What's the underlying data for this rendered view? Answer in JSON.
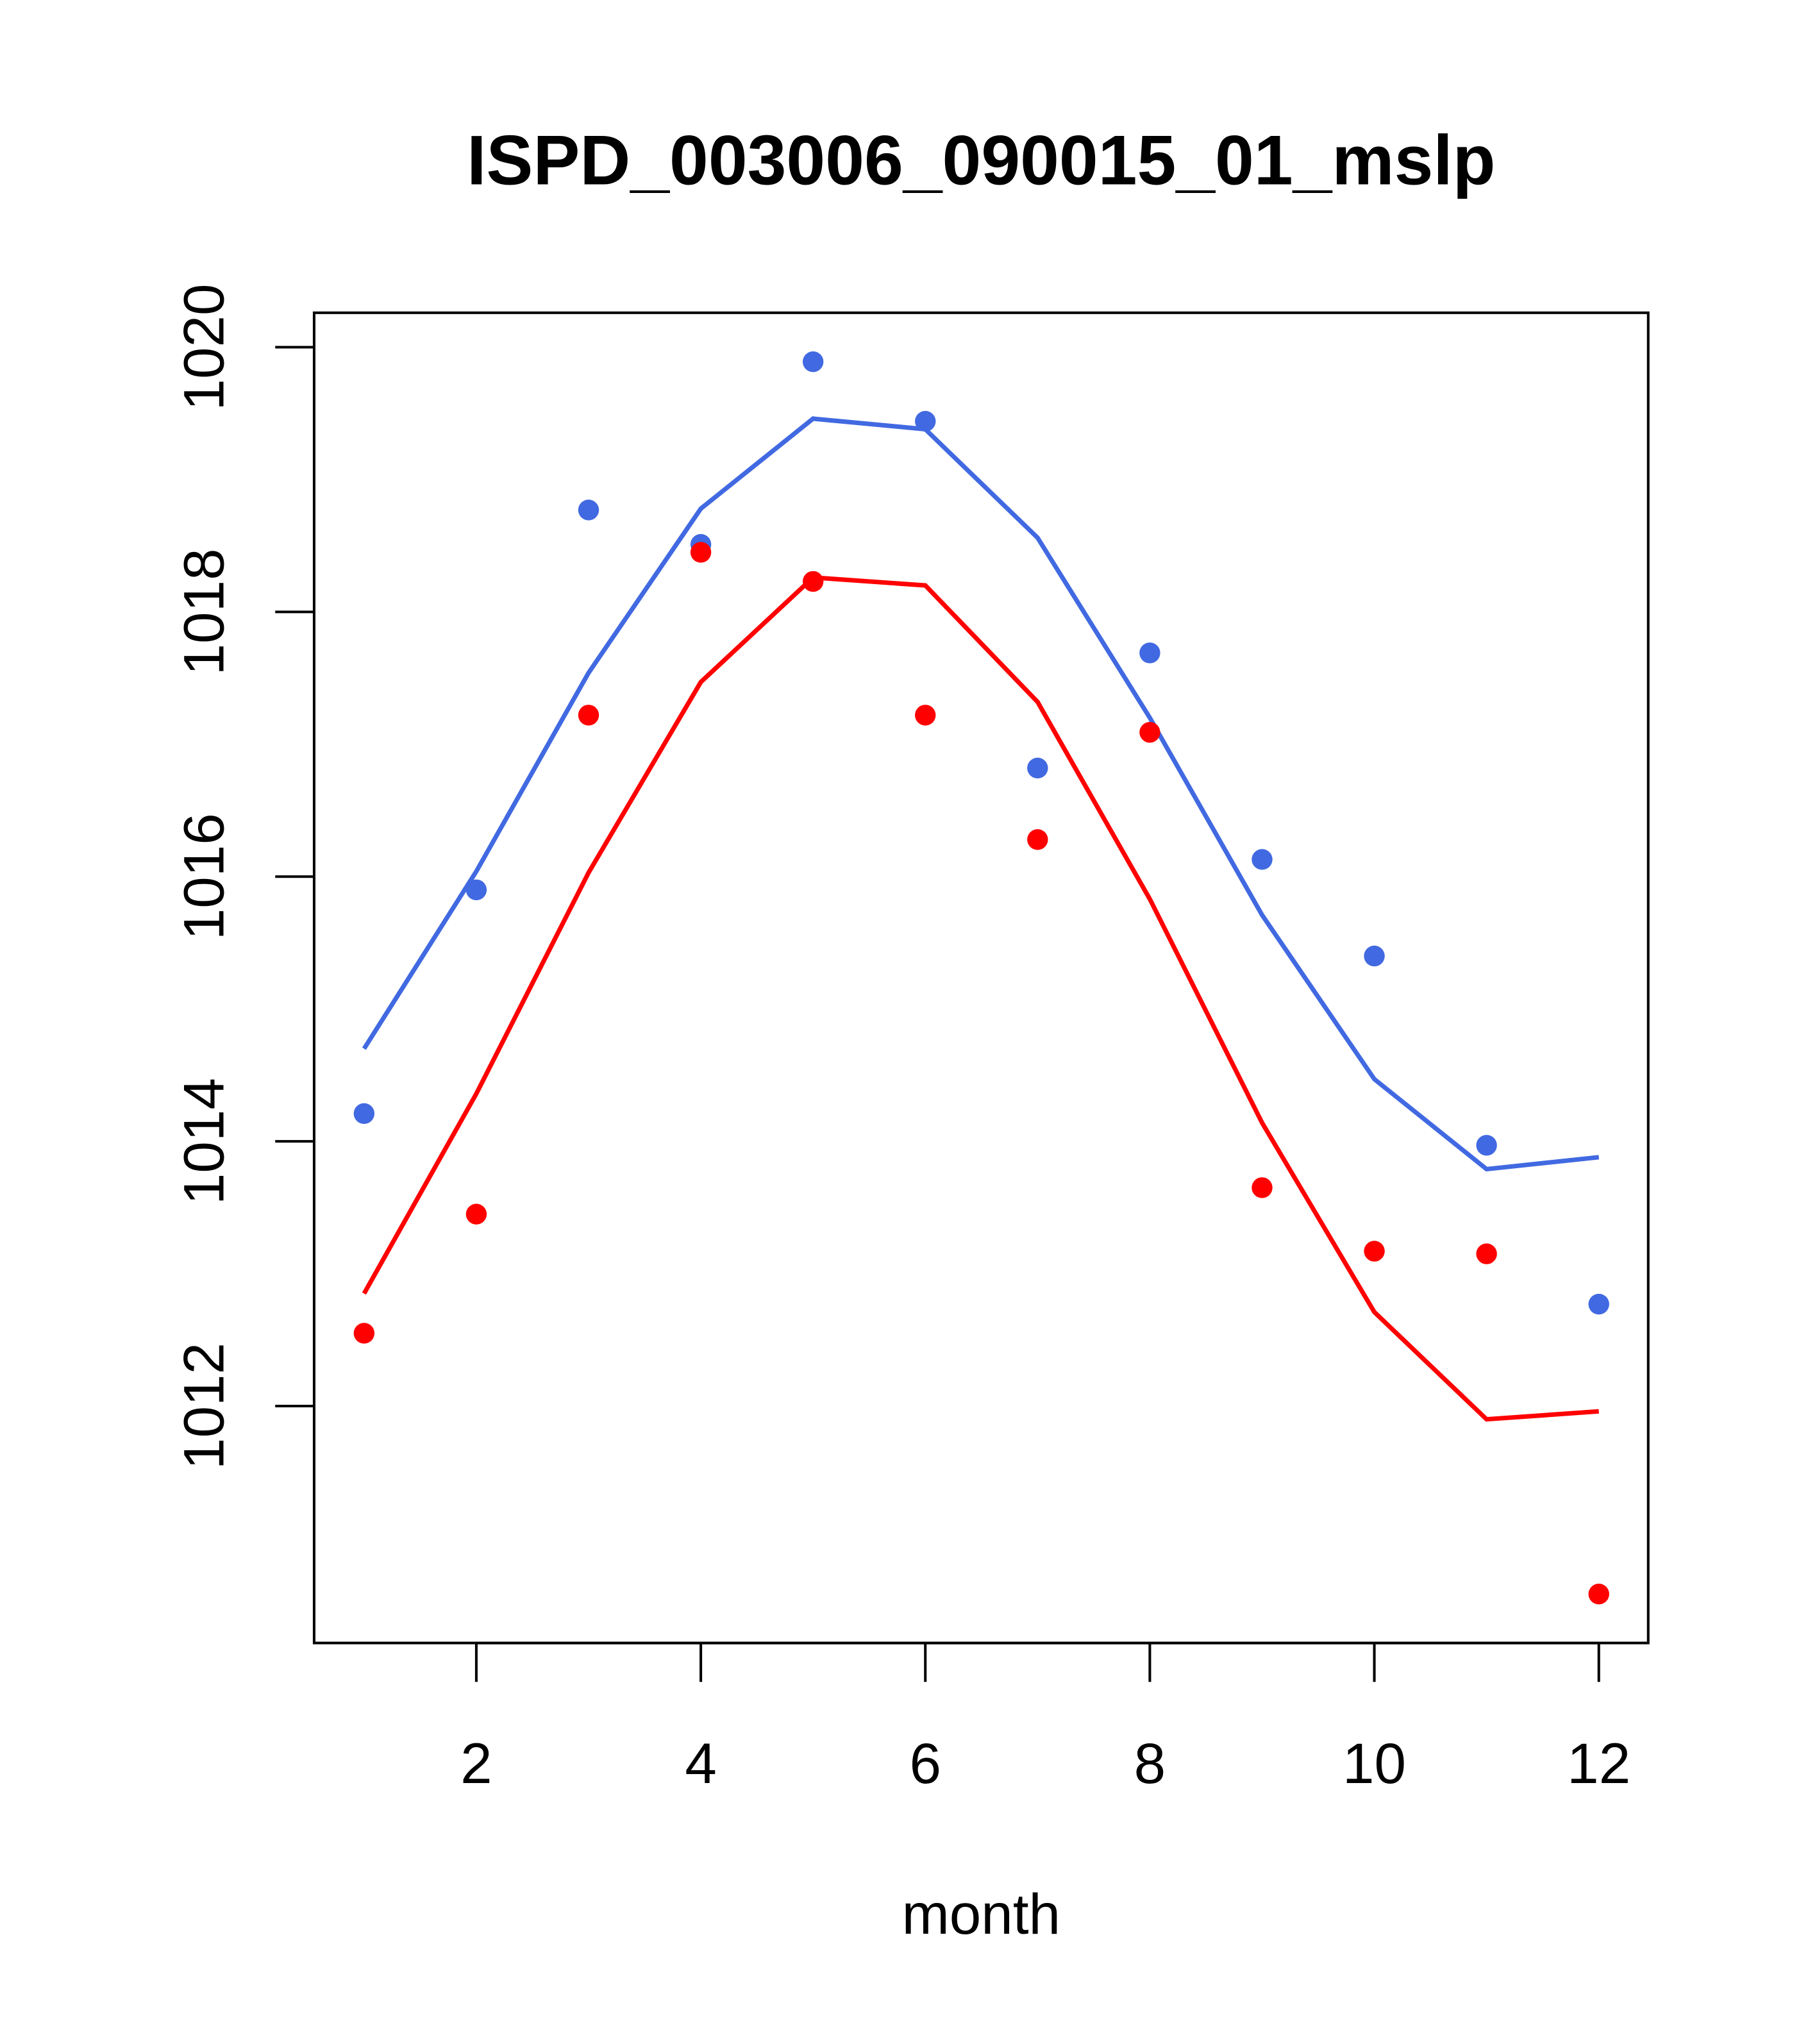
{
  "chart_data": {
    "type": "line",
    "title": "ISPD_003006_090015_01_mslp",
    "xlabel": "month",
    "ylabel": "",
    "xlim": [
      0.555,
      12.44
    ],
    "ylim": [
      1010.21,
      1020.26
    ],
    "x_ticks": [
      2,
      4,
      6,
      8,
      10,
      12
    ],
    "x_tick_labels": [
      "2",
      "4",
      "6",
      "8",
      "10",
      "12"
    ],
    "y_ticks": [
      1012,
      1014,
      1016,
      1018,
      1020
    ],
    "y_tick_labels": [
      "1012",
      "1014",
      "1016",
      "1018",
      "1020"
    ],
    "x": [
      1,
      2,
      3,
      4,
      5,
      6,
      7,
      8,
      9,
      10,
      11,
      12
    ],
    "series": [
      {
        "name": "blue points",
        "kind": "points",
        "color": "#4169E1",
        "values": [
          1014.21,
          1015.9,
          1018.77,
          1018.51,
          1019.89,
          1019.44,
          1016.82,
          1017.69,
          1016.13,
          1015.4,
          1013.97,
          1012.77
        ]
      },
      {
        "name": "blue line",
        "kind": "line",
        "color": "#4169E1",
        "values": [
          1014.7,
          1016.04,
          1017.54,
          1018.78,
          1019.46,
          1019.38,
          1018.56,
          1017.2,
          1015.71,
          1014.47,
          1013.79,
          1013.88
        ]
      },
      {
        "name": "red points",
        "kind": "points",
        "color": "#FF0000",
        "values": [
          1012.55,
          1013.45,
          1017.22,
          1018.45,
          1018.23,
          1017.22,
          1016.28,
          1017.09,
          1013.65,
          1013.17,
          1013.15,
          1010.58
        ]
      },
      {
        "name": "red line",
        "kind": "line",
        "color": "#FF0000",
        "values": [
          1012.85,
          1014.36,
          1016.03,
          1017.47,
          1018.26,
          1018.2,
          1017.32,
          1015.83,
          1014.14,
          1012.71,
          1011.9,
          1011.96
        ]
      }
    ],
    "grid": false
  }
}
